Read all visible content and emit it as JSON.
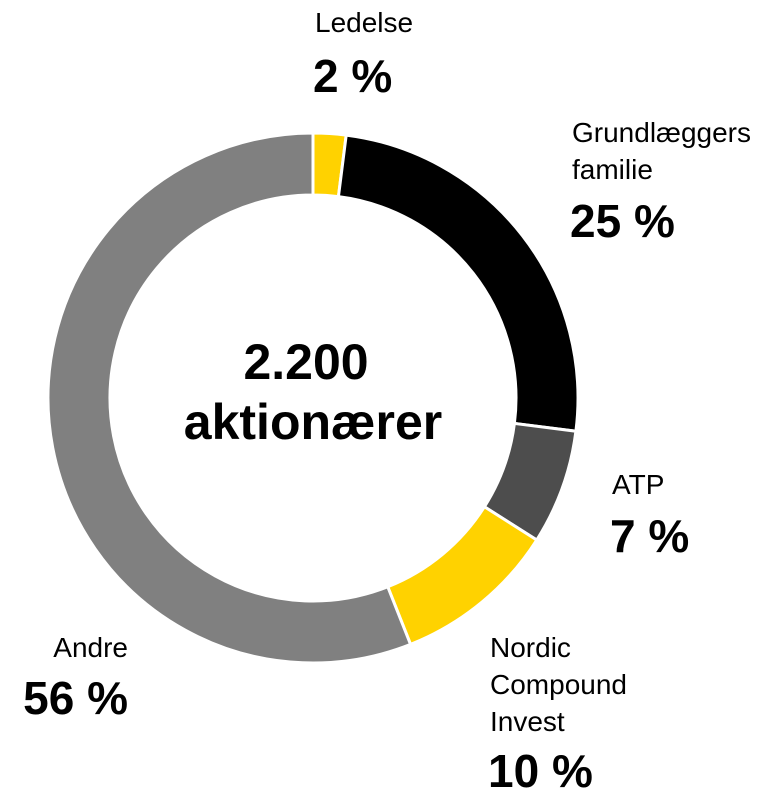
{
  "chart_data": {
    "type": "donut",
    "center_text": "2.200 aktionærer",
    "categories": [
      "Ledelse",
      "Grundlæggers familie",
      "ATP",
      "Nordic Compound Invest",
      "Andre"
    ],
    "values": [
      2,
      25,
      7,
      10,
      56
    ],
    "value_labels": [
      "2 %",
      "25 %",
      "7 %",
      "10 %",
      "56 %"
    ],
    "colors": [
      "#FFD200",
      "#000000",
      "#4D4D4D",
      "#FFD200",
      "#808080"
    ]
  }
}
